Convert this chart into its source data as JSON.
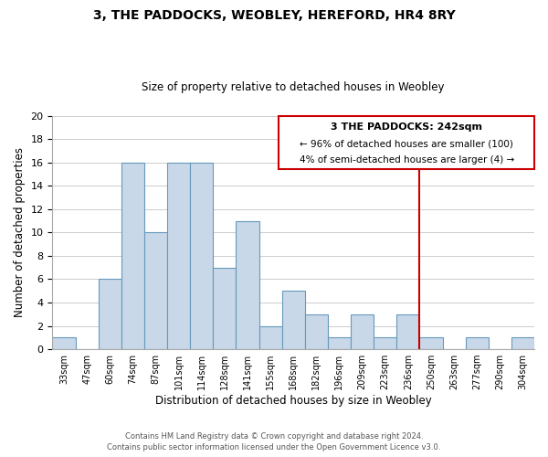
{
  "title": "3, THE PADDOCKS, WEOBLEY, HEREFORD, HR4 8RY",
  "subtitle": "Size of property relative to detached houses in Weobley",
  "xlabel": "Distribution of detached houses by size in Weobley",
  "ylabel": "Number of detached properties",
  "bin_labels": [
    "33sqm",
    "47sqm",
    "60sqm",
    "74sqm",
    "87sqm",
    "101sqm",
    "114sqm",
    "128sqm",
    "141sqm",
    "155sqm",
    "168sqm",
    "182sqm",
    "196sqm",
    "209sqm",
    "223sqm",
    "236sqm",
    "250sqm",
    "263sqm",
    "277sqm",
    "290sqm",
    "304sqm"
  ],
  "bar_heights": [
    1,
    0,
    6,
    16,
    10,
    16,
    16,
    7,
    11,
    2,
    5,
    3,
    1,
    3,
    1,
    3,
    1,
    0,
    1,
    0,
    1
  ],
  "bar_color": "#c8d8e8",
  "bar_edge_color": "#6699bb",
  "vline_index": 15,
  "vline_color": "#cc0000",
  "ylim": [
    0,
    20
  ],
  "yticks": [
    0,
    2,
    4,
    6,
    8,
    10,
    12,
    14,
    16,
    18,
    20
  ],
  "annotation_title": "3 THE PADDOCKS: 242sqm",
  "annotation_line1": "← 96% of detached houses are smaller (100)",
  "annotation_line2": "4% of semi-detached houses are larger (4) →",
  "annotation_box_color": "#ffffff",
  "annotation_box_edge": "#cc0000",
  "footer_line1": "Contains HM Land Registry data © Crown copyright and database right 2024.",
  "footer_line2": "Contains public sector information licensed under the Open Government Licence v3.0.",
  "background_color": "#ffffff",
  "grid_color": "#cccccc"
}
